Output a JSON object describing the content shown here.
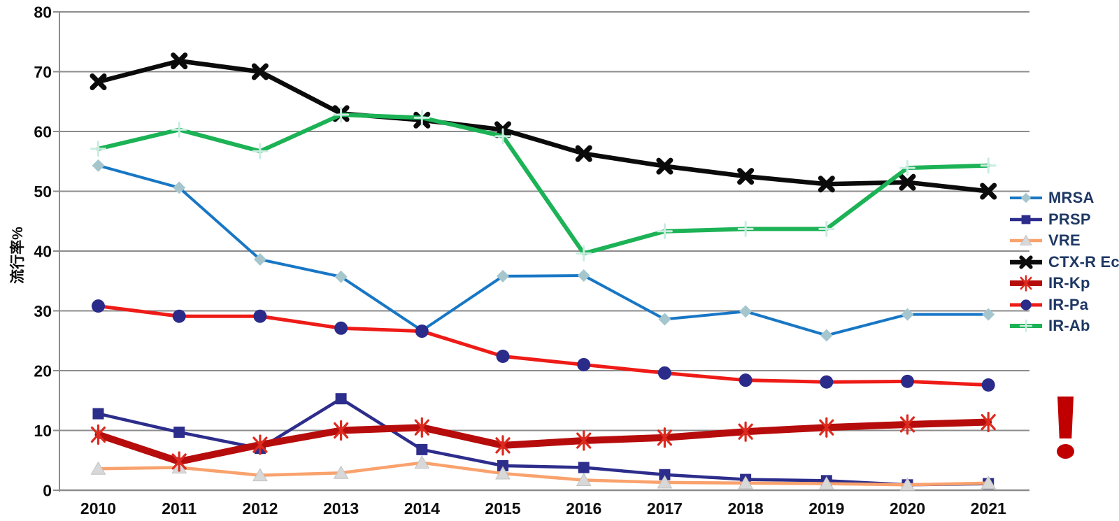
{
  "chart_data": {
    "type": "line",
    "title": "",
    "xlabel": "",
    "ylabel": "流行率%",
    "ylim": [
      0,
      80
    ],
    "ytick_step": 10,
    "grid": "horizontal",
    "legend_position": "right",
    "categories": [
      "2010",
      "2011",
      "2012",
      "2013",
      "2014",
      "2015",
      "2016",
      "2017",
      "2018",
      "2019",
      "2020",
      "2021"
    ],
    "series": [
      {
        "name": "MRSA",
        "line_color": "#1877C5",
        "line_width": 4,
        "marker": "diamond",
        "marker_color": "#A6C6CE",
        "values": [
          54.3,
          50.6,
          38.6,
          35.7,
          26.7,
          35.8,
          35.9,
          28.6,
          29.9,
          25.9,
          29.4,
          29.4
        ]
      },
      {
        "name": "PRSP",
        "line_color": "#2D2D8C",
        "line_width": 4.5,
        "marker": "square",
        "marker_color": "#2D2D8C",
        "values": [
          12.8,
          9.7,
          7.0,
          15.3,
          6.8,
          4.1,
          3.8,
          2.6,
          1.8,
          1.6,
          0.9,
          1.1
        ]
      },
      {
        "name": "VRE",
        "line_color": "#F9A26D",
        "line_width": 4.5,
        "marker": "triangle",
        "marker_color": "#D8D8D8",
        "values": [
          3.6,
          3.8,
          2.5,
          2.9,
          4.6,
          2.8,
          1.7,
          1.3,
          1.2,
          1.1,
          0.9,
          1.2
        ]
      },
      {
        "name": "CTX-R Ec",
        "line_color": "#0B0B0B",
        "line_width": 6.5,
        "marker": "x",
        "marker_color": "#0B0B0B",
        "values": [
          68.3,
          71.8,
          70.0,
          63.0,
          61.9,
          60.3,
          56.3,
          54.2,
          52.5,
          51.2,
          51.5,
          50.0
        ]
      },
      {
        "name": "IR-Kp",
        "line_color": "#B60C0C",
        "line_width": 10,
        "marker": "asterisk",
        "marker_color": "#DD2A1F",
        "values": [
          9.3,
          4.8,
          7.6,
          10.0,
          10.5,
          7.5,
          8.3,
          8.8,
          9.8,
          10.5,
          11.0,
          11.4
        ]
      },
      {
        "name": "IR-Pa",
        "line_color": "#EE1B17",
        "line_width": 5,
        "marker": "circle",
        "marker_color": "#2B2B8A",
        "values": [
          30.8,
          29.1,
          29.1,
          27.1,
          26.6,
          22.4,
          21.0,
          19.6,
          18.4,
          18.1,
          18.2,
          17.6
        ]
      },
      {
        "name": "IR-Ab",
        "line_color": "#1CB256",
        "line_width": 6,
        "marker": "plus",
        "marker_color": "#C9EDE0",
        "values": [
          57.1,
          60.3,
          56.7,
          62.8,
          62.3,
          59.2,
          39.6,
          43.3,
          43.7,
          43.7,
          53.9,
          54.3
        ]
      }
    ],
    "annotation": {
      "symbol": "!",
      "color": "#C00000"
    },
    "axis_color": "#8C8C8C"
  }
}
